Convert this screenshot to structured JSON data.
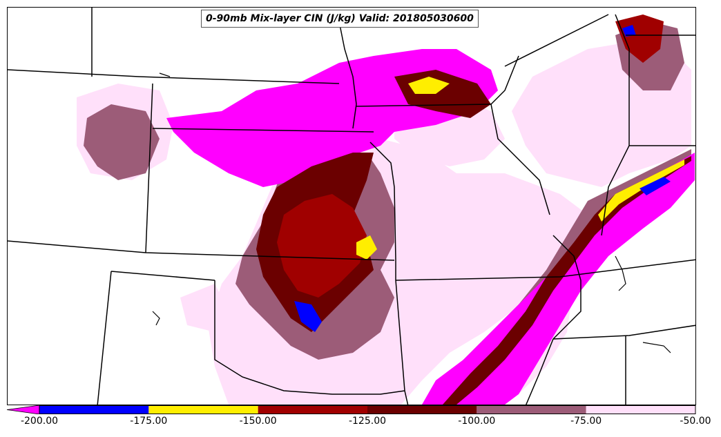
{
  "title": "0-90mb Mix-layer CIN (J/kg) Valid: 201805030600",
  "colorbar": {
    "ticks": [
      "-200.00",
      "-175.00",
      "-150.00",
      "-125.00",
      "-100.00",
      "-75.00",
      "-50.00"
    ],
    "bins": [
      {
        "from": -200,
        "to": -175,
        "color": "#0000ff"
      },
      {
        "from": -175,
        "to": -150,
        "color": "#ffee00"
      },
      {
        "from": -150,
        "to": -125,
        "color": "#a00000"
      },
      {
        "from": -125,
        "to": -100,
        "color": "#6b0000"
      },
      {
        "from": -100,
        "to": -75,
        "color": "#9c5c78"
      },
      {
        "from": -75,
        "to": -50,
        "color": "#ffe0fa"
      }
    ],
    "under_color": "#ff00ff",
    "extend": "min"
  },
  "colors": {
    "below_min": "#ff00ff",
    "band_200_175": "#0000ff",
    "band_175_150": "#ffee00",
    "band_150_125": "#a00000",
    "band_125_100": "#6b0000",
    "band_100_75": "#9c5c78",
    "band_75_50": "#ffe0fa",
    "boundaries": "#000000"
  }
}
